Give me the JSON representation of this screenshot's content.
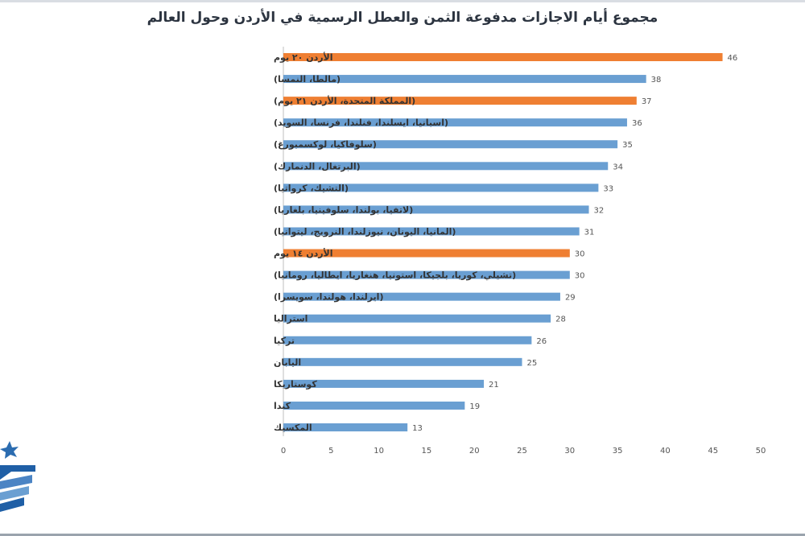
{
  "colors": {
    "highlight": "#ef7f32",
    "default": "#6a9fd2",
    "axis_text": "#555555",
    "label_text": "#333333"
  },
  "chart_data": {
    "type": "bar",
    "orientation": "horizontal",
    "title": "مجموع أيام الاجازات مدفوعة الثمن والعطل الرسمية في الأردن وحول العالم",
    "xlabel": "",
    "ylabel": "",
    "xlim": [
      0,
      50
    ],
    "xticks": [
      0,
      5,
      10,
      15,
      20,
      25,
      30,
      35,
      40,
      45,
      50
    ],
    "grid": false,
    "categories": [
      "الأردن ٢٠ يوم",
      "(مالطا، النمسا)",
      "(المملكة المتحدة، الأردن ٢١ يوم)",
      "(اسبانيا، ايسلندا، فنلندا، فرنسا، السويد)",
      "(سلوفاكيا، لوكسمبورغ)",
      "(البرتغال، الدنمارك)",
      "(التشيك، كرواتيا)",
      "(لاتفيا، بولندا، سلوفينيا، بلغاريا)",
      "(المانيا، اليونان، نيوزلندا، النرويج، ليتوانيا)",
      "الأردن ١٤ يوم",
      "(تشيلي، كوريا، بلجيكا، استونيا، هنغاريا، ايطاليا، رومانيا)",
      "(ايرلندا، هولندا، سويسرا)",
      "استراليا",
      "تركيا",
      "اليابان",
      "كوستاريكا",
      "كندا",
      "المكسيك"
    ],
    "values": [
      46,
      38,
      37,
      36,
      35,
      34,
      33,
      32,
      31,
      30,
      30,
      29,
      28,
      26,
      25,
      21,
      19,
      13
    ],
    "highlighted": [
      true,
      false,
      true,
      false,
      false,
      false,
      false,
      false,
      false,
      true,
      false,
      false,
      false,
      false,
      false,
      false,
      false,
      false
    ]
  }
}
